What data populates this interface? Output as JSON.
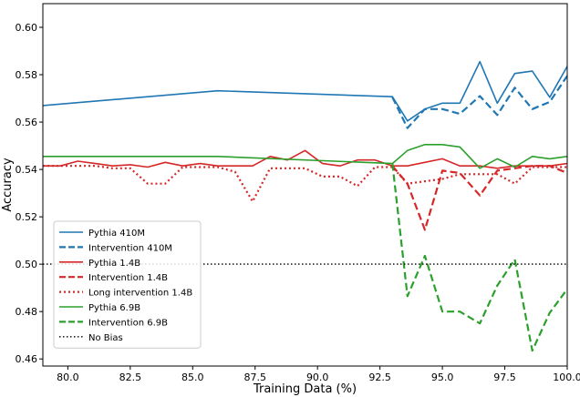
{
  "chart_data": {
    "type": "line",
    "xlabel": "Training Data (%)",
    "ylabel": "Accuracy",
    "xlim": [
      79,
      100
    ],
    "ylim": [
      0.457,
      0.61
    ],
    "xticks": [
      80.0,
      82.5,
      85.0,
      87.5,
      90.0,
      92.5,
      95.0,
      97.5,
      100.0
    ],
    "xtick_labels": [
      "80.0",
      "82.5",
      "85.0",
      "87.5",
      "90.0",
      "92.5",
      "95.0",
      "97.5",
      "100.0"
    ],
    "yticks": [
      0.46,
      0.48,
      0.5,
      0.52,
      0.54,
      0.56,
      0.58,
      0.6
    ],
    "ytick_labels": [
      "0.46",
      "0.48",
      "0.50",
      "0.52",
      "0.54",
      "0.56",
      "0.58",
      "0.60"
    ],
    "grid": false,
    "legend_position": "lower-left",
    "series": [
      {
        "name": "Pythia 410M",
        "color": "#1f77b4",
        "dash": "solid",
        "x": [
          79,
          86,
          93,
          93.6,
          94.3,
          95,
          95.7,
          96.5,
          97.2,
          97.9,
          98.6,
          99.3,
          100
        ],
        "y": [
          0.567,
          0.5732,
          0.5707,
          0.5605,
          0.5655,
          0.568,
          0.568,
          0.5855,
          0.568,
          0.5805,
          0.5815,
          0.5705,
          0.5835
        ]
      },
      {
        "name": "Intervention 410M",
        "color": "#1f77b4",
        "dash": "dashed",
        "x": [
          93,
          93.6,
          94.3,
          95,
          95.7,
          96.5,
          97.2,
          97.9,
          98.6,
          99.3,
          100
        ],
        "y": [
          0.5705,
          0.5575,
          0.5655,
          0.5655,
          0.5635,
          0.571,
          0.563,
          0.5745,
          0.5655,
          0.5685,
          0.5795
        ]
      },
      {
        "name": "Pythia 1.4B",
        "color": "#d62728",
        "dash": "solid",
        "x": [
          79,
          79.7,
          80.4,
          81.1,
          81.8,
          82.5,
          83.2,
          83.9,
          84.6,
          85.3,
          86,
          86.7,
          87.4,
          88.1,
          88.8,
          89.5,
          90.2,
          90.9,
          91.6,
          92.3,
          93,
          93.6,
          94.3,
          95,
          95.7,
          96.5,
          97.2,
          97.9,
          98.6,
          99.3,
          100
        ],
        "y": [
          0.5415,
          0.5415,
          0.5435,
          0.5425,
          0.5415,
          0.542,
          0.541,
          0.543,
          0.5415,
          0.5425,
          0.5415,
          0.5415,
          0.5415,
          0.5455,
          0.544,
          0.548,
          0.5425,
          0.5415,
          0.544,
          0.544,
          0.5415,
          0.5415,
          0.543,
          0.5445,
          0.5415,
          0.5415,
          0.5405,
          0.5415,
          0.5415,
          0.5415,
          0.5425
        ]
      },
      {
        "name": "Intervention 1.4B",
        "color": "#d62728",
        "dash": "dashed",
        "x": [
          93,
          93.6,
          94.3,
          95,
          95.7,
          96.5,
          97.2,
          97.9,
          98.6,
          99.3,
          100
        ],
        "y": [
          0.5415,
          0.534,
          0.5145,
          0.5395,
          0.5385,
          0.529,
          0.5395,
          0.5405,
          0.5415,
          0.5415,
          0.5385
        ]
      },
      {
        "name": "Long intervention 1.4B",
        "color": "#d62728",
        "dash": "dotted",
        "x": [
          79,
          79.7,
          80.4,
          81.1,
          81.8,
          82.5,
          83.2,
          83.9,
          84.6,
          85.3,
          86,
          86.7,
          87.4,
          88.1,
          88.8,
          89.5,
          90.2,
          90.9,
          91.6,
          92.3,
          93,
          93.6,
          94.3,
          95,
          95.7,
          96.5,
          97.2,
          97.9,
          98.6,
          99.3,
          100
        ],
        "y": [
          0.5415,
          0.5415,
          0.5415,
          0.5415,
          0.5405,
          0.5405,
          0.534,
          0.534,
          0.541,
          0.541,
          0.541,
          0.539,
          0.5265,
          0.5405,
          0.5405,
          0.5405,
          0.537,
          0.537,
          0.533,
          0.541,
          0.541,
          0.534,
          0.535,
          0.536,
          0.538,
          0.538,
          0.538,
          0.534,
          0.541,
          0.541,
          0.541
        ]
      },
      {
        "name": "Pythia 6.9B",
        "color": "#2ca02c",
        "dash": "solid",
        "x": [
          79,
          86,
          93,
          93.6,
          94.3,
          95,
          95.7,
          96.5,
          97.2,
          97.9,
          98.6,
          99.3,
          100
        ],
        "y": [
          0.5455,
          0.5455,
          0.5425,
          0.548,
          0.5505,
          0.5505,
          0.5495,
          0.5405,
          0.5445,
          0.541,
          0.5455,
          0.5445,
          0.5455
        ]
      },
      {
        "name": "Intervention 6.9B",
        "color": "#2ca02c",
        "dash": "dashed",
        "x": [
          93,
          93.6,
          94.3,
          95,
          95.7,
          96.5,
          97.2,
          97.9,
          98.6,
          99.3,
          100
        ],
        "y": [
          0.5425,
          0.4865,
          0.5035,
          0.48,
          0.48,
          0.475,
          0.491,
          0.502,
          0.4635,
          0.4795,
          0.4895
        ]
      },
      {
        "name": "No Bias",
        "color": "#000000",
        "dash": "dotted",
        "x": [
          79,
          100
        ],
        "y": [
          0.5,
          0.5
        ]
      }
    ]
  }
}
